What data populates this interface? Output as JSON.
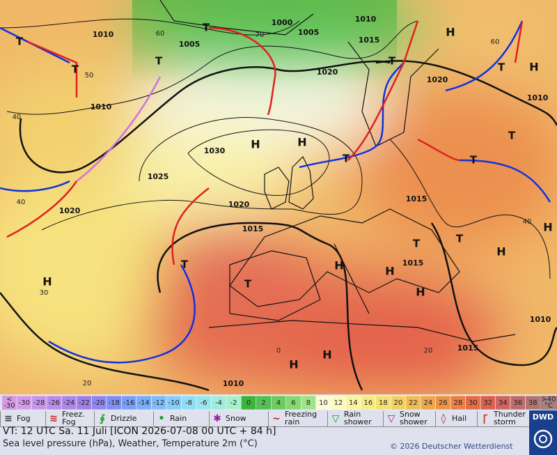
{
  "map": {
    "pressure_labels": [
      "1010",
      "1010",
      "1000",
      "1005",
      "1005",
      "1015",
      "1020",
      "1020",
      "1010",
      "1010",
      "1030",
      "1025",
      "1020",
      "1020",
      "1015",
      "1015",
      "1015",
      "1015",
      "1010",
      "1010"
    ],
    "temperature_labels": [
      "60",
      "50",
      "40",
      "40",
      "30",
      "20",
      "70",
      "0",
      "20",
      "40",
      "60"
    ],
    "highs": [
      "H",
      "H",
      "H",
      "H",
      "H",
      "H",
      "H",
      "H",
      "H",
      "H",
      "H",
      "H"
    ],
    "lows": [
      "T",
      "T",
      "T",
      "T",
      "T",
      "T",
      "T",
      "T",
      "T",
      "T",
      "T",
      "T",
      "T"
    ]
  },
  "color_scale": {
    "low_end": {
      "top": "<",
      "bottom": "-30",
      "color": "#d79be6"
    },
    "values": [
      -30,
      -28,
      -26,
      -24,
      -22,
      -20,
      -18,
      -16,
      -14,
      -12,
      -10,
      -8,
      -6,
      -4,
      -2,
      0,
      2,
      4,
      6,
      8,
      10,
      12,
      14,
      16,
      18,
      20,
      22,
      24,
      26,
      28,
      30,
      32,
      34,
      36,
      38
    ],
    "colors": [
      "#d49ae8",
      "#c893e8",
      "#bb8ce8",
      "#ae86e8",
      "#a080e8",
      "#8f86ee",
      "#8090f2",
      "#7a9ef6",
      "#7aacf8",
      "#80bcfa",
      "#88ccfa",
      "#90dcf6",
      "#98e6ec",
      "#a0ecde",
      "#a8f0cc",
      "#3cb43c",
      "#52c052",
      "#6ccc60",
      "#86d872",
      "#a0e28a",
      "#fafad8",
      "#fafac0",
      "#f8f4a0",
      "#f6ec86",
      "#f4e070",
      "#f2d062",
      "#f0bc56",
      "#eea84c",
      "#ec9446",
      "#ea8044",
      "#e46c48",
      "#dc6050",
      "#d06460",
      "#c06a6a",
      "#b07474"
    ],
    "high_end": {
      "top": ">40",
      "bottom": "°C",
      "color": "#a88080"
    }
  },
  "weather_legend": [
    {
      "lines": [
        "Fog"
      ]
    },
    {
      "lines": [
        "Freez.",
        "Fog"
      ]
    },
    {
      "lines": [
        "Drizzle"
      ]
    },
    {
      "lines": [
        "Rain"
      ]
    },
    {
      "lines": [
        "Snow"
      ]
    },
    {
      "lines": [
        "Freezing",
        "rain"
      ]
    },
    {
      "lines": [
        "Rain",
        "shower"
      ]
    },
    {
      "lines": [
        "Snow",
        "shower"
      ]
    },
    {
      "lines": [
        "Hail"
      ]
    },
    {
      "lines": [
        "Thunder",
        "storm"
      ]
    }
  ],
  "footer": {
    "valid_time": "VT: 12 UTC Sa.  11 Juli [ICON 2026-07-08  00 UTC + 84 h]",
    "description": "Sea level pressure (hPa), Weather, Temperature 2m (°C)",
    "copyright": "© 2026 Deutscher Wetterdienst",
    "logo": "DWD"
  }
}
